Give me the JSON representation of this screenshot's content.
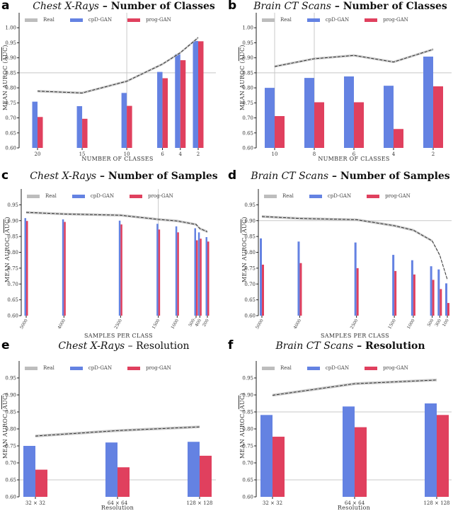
{
  "legend": {
    "real": "Real",
    "cpd": "cpD-GAN",
    "prog": "prog-GAN"
  },
  "colors": {
    "cpd": "#6482e2",
    "prog": "#e0405e",
    "real_band": "#bdbdbd",
    "real_line": "#333333",
    "grid": "#c8c8c8"
  },
  "y_axis_label": {
    "prefix": "MEAN AUROC (",
    "auc": "AUC",
    "suffix": ")"
  },
  "chart_data": [
    {
      "id": "a",
      "letter": "a",
      "type": "bar",
      "title_italic": "Chest X-Rays",
      "title_rest": " – Number of Classes",
      "xlabel": "NUMBER OF CLASSES",
      "ylabel": "MEAN AUROC (AUC)",
      "x_scale": "linear-reversed",
      "categories": [
        "20",
        "15",
        "10",
        "6",
        "4",
        "2"
      ],
      "x": [
        20,
        15,
        10,
        6,
        4,
        2
      ],
      "ylim": [
        0.6,
        1.05
      ],
      "yticks": [
        "0.60",
        "0.65",
        "0.70",
        "0.75",
        "0.80",
        "0.85",
        "0.90",
        "0.95",
        "1.00"
      ],
      "hlines": [
        0.85
      ],
      "vlines": [
        10
      ],
      "series": [
        {
          "name": "cpD-GAN",
          "values": [
            0.754,
            0.739,
            0.783,
            0.853,
            0.912,
            0.956
          ]
        },
        {
          "name": "prog-GAN",
          "values": [
            0.703,
            0.697,
            0.74,
            0.832,
            0.892,
            0.955
          ]
        },
        {
          "name": "Real",
          "values": [
            0.789,
            0.783,
            0.822,
            0.879,
            0.917,
            0.967
          ]
        }
      ]
    },
    {
      "id": "b",
      "letter": "b",
      "type": "bar",
      "title_italic": "Brain CT Scans",
      "title_rest": " – Number of Classes",
      "xlabel": "NUMBER OF CLASSES",
      "ylabel": "MEAN AUROC (AUC)",
      "x_scale": "categorical",
      "categories": [
        "10",
        "8",
        "6",
        "4",
        "2"
      ],
      "ylim": [
        0.6,
        1.05
      ],
      "yticks": [
        "0.60",
        "0.65",
        "0.70",
        "0.75",
        "0.80",
        "0.85",
        "0.90",
        "0.95",
        "1.00"
      ],
      "hlines": [
        0.85
      ],
      "vlines": [
        "10",
        "8"
      ],
      "series": [
        {
          "name": "cpD-GAN",
          "values": [
            0.8,
            0.833,
            0.838,
            0.807,
            0.904
          ]
        },
        {
          "name": "prog-GAN",
          "values": [
            0.706,
            0.752,
            0.752,
            0.663,
            0.805
          ]
        },
        {
          "name": "Real",
          "values": [
            0.871,
            0.897,
            0.908,
            0.886,
            0.928
          ]
        }
      ]
    },
    {
      "id": "c",
      "letter": "c",
      "type": "bar",
      "title_italic": "Chest X-Rays",
      "title_rest": " – Number of Samples",
      "xlabel": "SAMPLES PER CLASS",
      "ylabel": "MEAN AUROC (AUC)",
      "x_scale": "linear-reversed",
      "categories": [
        "5000",
        "4000",
        "2500",
        "1500",
        "1000",
        "500",
        "400",
        "200"
      ],
      "x": [
        5000,
        4000,
        2500,
        1500,
        1000,
        500,
        400,
        200
      ],
      "ylim": [
        0.6,
        1.0
      ],
      "yticks": [
        "0.60",
        "0.65",
        "0.70",
        "0.75",
        "0.80",
        "0.85",
        "0.90",
        "0.95"
      ],
      "hlines": [],
      "vlines": [
        1500
      ],
      "series": [
        {
          "name": "cpD-GAN",
          "values": [
            0.908,
            0.904,
            0.9,
            0.89,
            0.882,
            0.876,
            0.863,
            0.848
          ]
        },
        {
          "name": "prog-GAN",
          "values": [
            0.899,
            0.896,
            0.888,
            0.872,
            0.863,
            0.838,
            0.843,
            0.834
          ]
        },
        {
          "name": "Real",
          "values": [
            0.926,
            0.921,
            0.917,
            0.904,
            0.899,
            0.888,
            0.875,
            0.865
          ]
        }
      ]
    },
    {
      "id": "d",
      "letter": "d",
      "type": "bar",
      "title_italic": "Brain CT Scans",
      "title_rest": " – Number of Samples",
      "xlabel": "SAMPLES PER CLASS",
      "ylabel": "MEAN AUROC (AUC)",
      "x_scale": "linear-reversed",
      "categories": [
        "5000",
        "4000",
        "2500",
        "1500",
        "1000",
        "500",
        "300",
        "100"
      ],
      "x": [
        5000,
        4000,
        2500,
        1500,
        1000,
        500,
        300,
        100
      ],
      "ylim": [
        0.6,
        1.0
      ],
      "yticks": [
        "0.60",
        "0.65",
        "0.70",
        "0.75",
        "0.80",
        "0.85",
        "0.90",
        "0.95"
      ],
      "hlines": [
        0.9
      ],
      "vlines": [],
      "series": [
        {
          "name": "cpD-GAN",
          "values": [
            0.844,
            0.834,
            0.831,
            0.792,
            0.775,
            0.756,
            0.746,
            0.702
          ]
        },
        {
          "name": "prog-GAN",
          "values": [
            0.761,
            0.766,
            0.75,
            0.741,
            0.73,
            0.713,
            0.684,
            0.64
          ]
        },
        {
          "name": "Real",
          "values": [
            0.913,
            0.907,
            0.903,
            0.884,
            0.87,
            0.836,
            0.791,
            0.714
          ]
        }
      ]
    },
    {
      "id": "e",
      "letter": "e",
      "type": "bar",
      "title_italic": "Chest X-Rays",
      "title_rest": " – Resolution",
      "xlabel": "Resolution",
      "ylabel": "MEAN AUROC (AUC)",
      "x_scale": "categorical",
      "categories": [
        "32 × 32",
        "64 × 64",
        "128 × 128"
      ],
      "ylim": [
        0.6,
        1.0
      ],
      "yticks": [
        "0.60",
        "0.65",
        "0.70",
        "0.75",
        "0.80",
        "0.85",
        "0.90",
        "0.95"
      ],
      "hlines": [
        0.65
      ],
      "vlines": [],
      "series": [
        {
          "name": "cpD-GAN",
          "values": [
            0.75,
            0.76,
            0.762
          ]
        },
        {
          "name": "prog-GAN",
          "values": [
            0.68,
            0.687,
            0.721
          ]
        },
        {
          "name": "Real",
          "values": [
            0.779,
            0.795,
            0.806
          ]
        }
      ]
    },
    {
      "id": "f",
      "letter": "f",
      "type": "bar",
      "title_italic": "Brain CT Scans",
      "title_rest": " – Resolution",
      "xlabel": "Resolution",
      "ylabel": "MEAN AUROC (AUC)",
      "x_scale": "categorical",
      "categories": [
        "32 × 32",
        "64 × 64",
        "128 × 128"
      ],
      "ylim": [
        0.6,
        1.0
      ],
      "yticks": [
        "0.60",
        "0.65",
        "0.70",
        "0.75",
        "0.80",
        "0.85",
        "0.90",
        "0.95"
      ],
      "hlines": [
        0.65,
        0.85
      ],
      "vlines": [],
      "series": [
        {
          "name": "cpD-GAN",
          "values": [
            0.841,
            0.866,
            0.875
          ]
        },
        {
          "name": "prog-GAN",
          "values": [
            0.777,
            0.805,
            0.841
          ]
        },
        {
          "name": "Real",
          "values": [
            0.899,
            0.933,
            0.944
          ]
        }
      ]
    }
  ]
}
